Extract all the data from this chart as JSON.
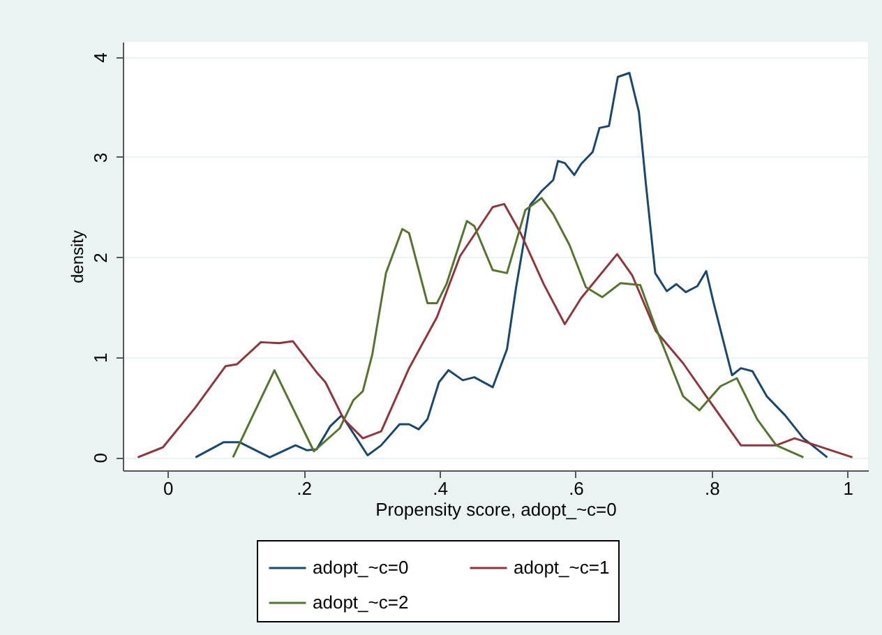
{
  "chart_data": {
    "type": "line",
    "xlabel": "Propensity score, adopt_~c=0",
    "ylabel": "density",
    "xlim": [
      -0.066,
      1.03
    ],
    "ylim": [
      -0.13,
      4.15
    ],
    "xticks": [
      {
        "value": 0,
        "label": "0"
      },
      {
        "value": 0.2,
        "label": ".2"
      },
      {
        "value": 0.4,
        "label": ".4"
      },
      {
        "value": 0.6,
        "label": ".6"
      },
      {
        "value": 0.8,
        "label": ".8"
      },
      {
        "value": 1,
        "label": "1"
      }
    ],
    "yticks": [
      0,
      1,
      2,
      3,
      4
    ],
    "grid": "y",
    "legend": "bottom",
    "series": [
      {
        "name": "adopt_~c=0",
        "color": "#1a476f",
        "x": [
          0.041,
          0.082,
          0.106,
          0.15,
          0.188,
          0.205,
          0.219,
          0.239,
          0.256,
          0.294,
          0.314,
          0.341,
          0.355,
          0.369,
          0.382,
          0.399,
          0.413,
          0.434,
          0.451,
          0.478,
          0.499,
          0.512,
          0.533,
          0.55,
          0.567,
          0.574,
          0.584,
          0.598,
          0.608,
          0.625,
          0.635,
          0.649,
          0.662,
          0.679,
          0.693,
          0.703,
          0.717,
          0.734,
          0.748,
          0.762,
          0.779,
          0.792,
          0.803,
          0.83,
          0.843,
          0.86,
          0.881,
          0.908,
          0.935,
          0.97
        ],
        "values": [
          0,
          0.15,
          0.15,
          0,
          0.12,
          0.07,
          0.08,
          0.31,
          0.42,
          0.02,
          0.12,
          0.33,
          0.33,
          0.28,
          0.38,
          0.75,
          0.87,
          0.77,
          0.8,
          0.7,
          1.08,
          1.68,
          2.52,
          2.66,
          2.77,
          2.96,
          2.94,
          2.82,
          2.93,
          3.05,
          3.29,
          3.31,
          3.8,
          3.84,
          3.45,
          2.75,
          1.84,
          1.66,
          1.73,
          1.65,
          1.71,
          1.86,
          1.54,
          0.82,
          0.89,
          0.86,
          0.61,
          0.42,
          0.19,
          0
        ]
      },
      {
        "name": "adopt_~c=1",
        "color": "#90353b",
        "x": [
          -0.044,
          -0.007,
          0.041,
          0.085,
          0.102,
          0.137,
          0.164,
          0.184,
          0.219,
          0.232,
          0.259,
          0.287,
          0.314,
          0.355,
          0.396,
          0.43,
          0.478,
          0.495,
          0.519,
          0.553,
          0.584,
          0.608,
          0.661,
          0.683,
          0.718,
          0.758,
          0.792,
          0.843,
          0.895,
          0.922,
          1.007
        ],
        "values": [
          0,
          0.1,
          0.5,
          0.91,
          0.93,
          1.15,
          1.14,
          1.16,
          0.85,
          0.75,
          0.38,
          0.19,
          0.26,
          0.89,
          1.4,
          2.01,
          2.5,
          2.53,
          2.24,
          1.73,
          1.33,
          1.59,
          2.03,
          1.82,
          1.26,
          0.94,
          0.61,
          0.12,
          0.12,
          0.19,
          0
        ]
      },
      {
        "name": "adopt_~c=2",
        "color": "#55752f",
        "x": [
          0.096,
          0.157,
          0.215,
          0.253,
          0.273,
          0.287,
          0.301,
          0.321,
          0.345,
          0.355,
          0.382,
          0.396,
          0.41,
          0.44,
          0.451,
          0.478,
          0.499,
          0.526,
          0.55,
          0.567,
          0.591,
          0.615,
          0.639,
          0.666,
          0.695,
          0.717,
          0.758,
          0.782,
          0.813,
          0.837,
          0.867,
          0.895,
          0.935
        ],
        "values": [
          0,
          0.87,
          0.06,
          0.29,
          0.57,
          0.66,
          1.03,
          1.84,
          2.28,
          2.24,
          1.54,
          1.54,
          1.73,
          2.36,
          2.31,
          1.87,
          1.84,
          2.47,
          2.59,
          2.43,
          2.12,
          1.7,
          1.6,
          1.74,
          1.72,
          1.31,
          0.61,
          0.47,
          0.71,
          0.79,
          0.38,
          0.12,
          0
        ]
      }
    ]
  }
}
